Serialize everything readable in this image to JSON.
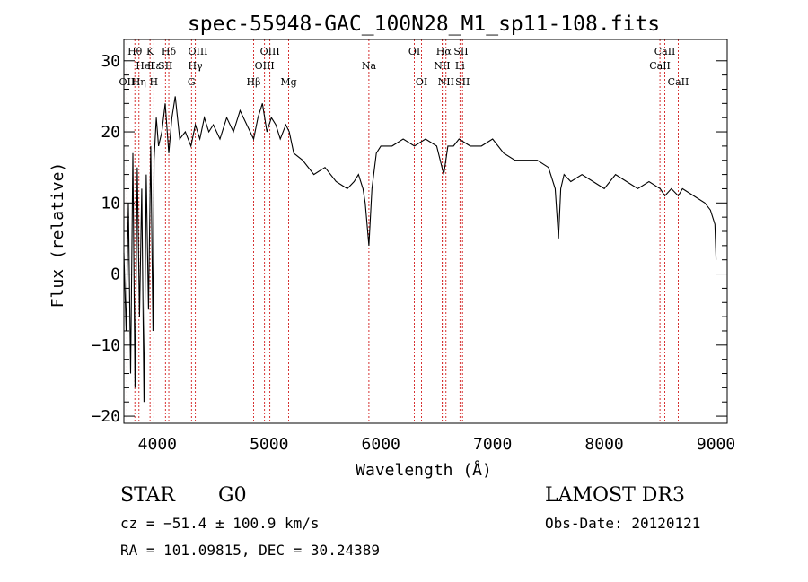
{
  "chart_data": {
    "type": "line",
    "title": "spec-55948-GAC_100N28_M1_sp11-108.fits",
    "xlabel": "Wavelength (Å)",
    "ylabel": "Flux (relative)",
    "xlim": [
      3700,
      9100
    ],
    "ylim": [
      -21,
      33
    ],
    "xticks": [
      4000,
      5000,
      6000,
      7000,
      8000,
      9000
    ],
    "yticks": [
      -20,
      -10,
      0,
      10,
      20,
      30
    ],
    "grid": false,
    "series": [
      {
        "name": "spectrum",
        "x": [
          3700,
          3720,
          3740,
          3760,
          3780,
          3800,
          3820,
          3840,
          3860,
          3880,
          3900,
          3920,
          3940,
          3960,
          3970,
          3990,
          4010,
          4040,
          4070,
          4102,
          4130,
          4160,
          4200,
          4250,
          4300,
          4340,
          4380,
          4420,
          4460,
          4500,
          4560,
          4620,
          4680,
          4740,
          4800,
          4861,
          4900,
          4940,
          4980,
          5020,
          5060,
          5100,
          5150,
          5180,
          5220,
          5300,
          5400,
          5500,
          5600,
          5700,
          5760,
          5800,
          5840,
          5860,
          5893,
          5920,
          5960,
          6000,
          6100,
          6200,
          6300,
          6400,
          6500,
          6563,
          6600,
          6650,
          6700,
          6800,
          6900,
          7000,
          7100,
          7200,
          7300,
          7400,
          7500,
          7560,
          7590,
          7610,
          7640,
          7700,
          7800,
          7900,
          8000,
          8100,
          8200,
          8300,
          8400,
          8500,
          8542,
          8600,
          8662,
          8700,
          8800,
          8900,
          8950,
          8990,
          9000
        ],
        "y": [
          3,
          -8,
          10,
          -14,
          17,
          -16,
          15,
          -6,
          12,
          -18,
          14,
          -5,
          18,
          -8,
          16,
          22,
          18,
          20,
          24,
          17,
          22,
          25,
          19,
          20,
          18,
          21,
          19,
          22,
          20,
          21,
          19,
          22,
          20,
          23,
          21,
          19,
          22,
          24,
          20,
          22,
          21,
          19,
          21,
          20,
          17,
          16,
          14,
          15,
          13,
          12,
          13,
          14,
          12,
          10,
          4,
          12,
          17,
          18,
          18,
          19,
          18,
          19,
          18,
          14,
          18,
          18,
          19,
          18,
          18,
          19,
          17,
          16,
          16,
          16,
          15,
          12,
          5,
          12,
          14,
          13,
          14,
          13,
          12,
          14,
          13,
          12,
          13,
          12,
          11,
          12,
          11,
          12,
          11,
          10,
          9,
          7,
          2
        ]
      }
    ],
    "lines": [
      {
        "label": "Hθ",
        "wave": 3798,
        "row": 1
      },
      {
        "label": "OII",
        "wave": 3727,
        "row": 3
      },
      {
        "label": "Hη",
        "wave": 3835,
        "row": 3
      },
      {
        "label": "HeI",
        "wave": 3889,
        "row": 2
      },
      {
        "label": "K",
        "wave": 3934,
        "row": 1
      },
      {
        "label": "H",
        "wave": 3968,
        "row": 3
      },
      {
        "label": "Hε",
        "wave": 3970,
        "row": 2
      },
      {
        "label": "SII",
        "wave": 4072,
        "row": 2
      },
      {
        "label": "Hδ",
        "wave": 4102,
        "row": 1
      },
      {
        "label": "OIII",
        "wave": 4363,
        "row": 1
      },
      {
        "label": "Hγ",
        "wave": 4340,
        "row": 2
      },
      {
        "label": "G",
        "wave": 4305,
        "row": 3
      },
      {
        "label": "Hβ",
        "wave": 4861,
        "row": 3
      },
      {
        "label": "OIII",
        "wave": 4959,
        "row": 2
      },
      {
        "label": "OIII",
        "wave": 5007,
        "row": 1
      },
      {
        "label": "Mg",
        "wave": 5175,
        "row": 3
      },
      {
        "label": "Na",
        "wave": 5893,
        "row": 2
      },
      {
        "label": "OI",
        "wave": 6300,
        "row": 1
      },
      {
        "label": "OI",
        "wave": 6364,
        "row": 3
      },
      {
        "label": "NII",
        "wave": 6548,
        "row": 2
      },
      {
        "label": "Hα",
        "wave": 6563,
        "row": 1
      },
      {
        "label": "NII",
        "wave": 6583,
        "row": 3
      },
      {
        "label": "SII",
        "wave": 6717,
        "row": 1
      },
      {
        "label": "Li",
        "wave": 6708,
        "row": 2
      },
      {
        "label": "SII",
        "wave": 6731,
        "row": 3
      },
      {
        "label": "CaII",
        "wave": 8498,
        "row": 2
      },
      {
        "label": "CaII",
        "wave": 8542,
        "row": 1
      },
      {
        "label": "CaII",
        "wave": 8662,
        "row": 3
      }
    ]
  },
  "info": {
    "class_label": "STAR",
    "subclass": "G0",
    "redshift": "cz = −51.4 ± 100.9 km/s",
    "coords": "RA = 101.09815, DEC =  30.24389",
    "survey": "LAMOST DR3",
    "obs_date": "Obs-Date: 20120121"
  },
  "colors": {
    "axis": "#000000",
    "spectrum": "#000000",
    "line_marker": "#cc0000",
    "background": "#ffffff"
  }
}
